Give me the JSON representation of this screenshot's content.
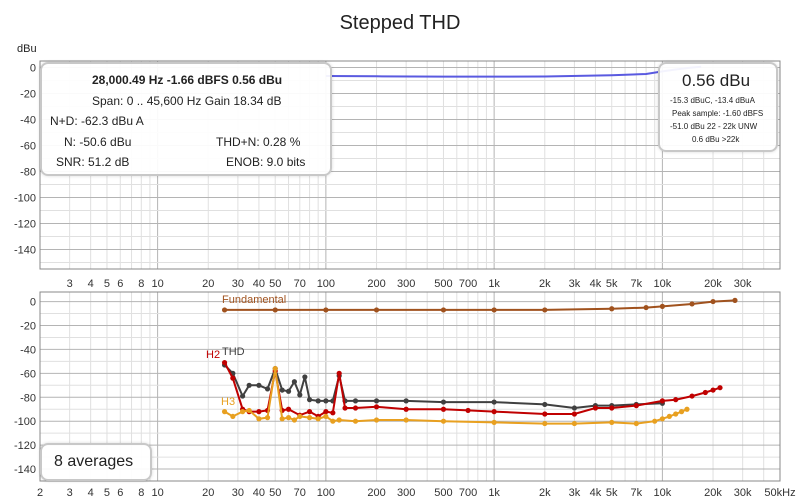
{
  "title": "Stepped THD",
  "info_panel": {
    "line1": "28,000.49 Hz  -1.66 dBFS  0.56 dBu",
    "line2": "Span: 0 .. 45,600 Hz   Gain 18.34 dB",
    "nd": "N+D: -62.3 dBu A",
    "n": "N:  -50.6 dBu",
    "thdn": "THD+N:  0.28 %",
    "snr": "SNR:  51.2 dB",
    "enob": "ENOB:  9.0 bits"
  },
  "reading_panel": {
    "big": "0.56 dBu",
    "l1": "-15.3 dBuC, -13.4 dBuA",
    "l2": "Peak sample: -1.60 dBFS",
    "l3": "-51.0 dBu 22 - 22k UNW",
    "l4": "0.6 dBu >22k"
  },
  "averages_label": "8 averages",
  "colors": {
    "top_trace": "#5a5ae0",
    "fundamental": "#a0521e",
    "thd": "#404040",
    "h2": "#c00000",
    "h3": "#e8a020",
    "grid_major": "#b4b4b4",
    "grid_minor": "#e0e0e0"
  },
  "chart_data": [
    {
      "type": "line",
      "panel": "top",
      "ylabel": "dBu",
      "ylim": [
        -155,
        5
      ],
      "xlim": [
        2,
        50000
      ],
      "xscale": "log",
      "y_ticks": [
        0,
        -20,
        -40,
        -60,
        -80,
        -100,
        -120,
        -140
      ],
      "x_tick_labels": [
        "3",
        "4",
        "5",
        "6",
        "8",
        "10",
        "20",
        "30",
        "40",
        "50",
        "70",
        "100",
        "200",
        "300",
        "500",
        "700",
        "1k",
        "2k",
        "3k",
        "4k",
        "5k",
        "7k",
        "10k",
        "20k",
        "30k"
      ],
      "series": [
        {
          "name": "",
          "x": [
            100,
            200,
            500,
            1000,
            2000,
            5000,
            8000,
            10000,
            12000,
            15000,
            17000
          ],
          "y": [
            -6.5,
            -6.8,
            -7,
            -7,
            -6.9,
            -6,
            -5,
            -3,
            -1.5,
            0,
            0.5
          ]
        }
      ]
    },
    {
      "type": "line",
      "panel": "bottom",
      "ylim": [
        -150,
        8
      ],
      "xlim": [
        2,
        50000
      ],
      "xscale": "log",
      "y_ticks": [
        0,
        -20,
        -40,
        -60,
        -80,
        -100,
        -120,
        -140
      ],
      "x_tick_labels": [
        "2",
        "3",
        "4",
        "5",
        "6",
        "8",
        "10",
        "20",
        "30",
        "40",
        "50",
        "70",
        "100",
        "200",
        "300",
        "500",
        "700",
        "1k",
        "2k",
        "3k",
        "4k",
        "5k",
        "7k",
        "10k",
        "20k",
        "30k",
        "50kHz"
      ],
      "series": [
        {
          "name": "Fundamental",
          "x": [
            25,
            50,
            100,
            200,
            500,
            1000,
            2000,
            5000,
            8000,
            10000,
            15000,
            20000,
            27000
          ],
          "y": [
            -7,
            -7,
            -7,
            -7,
            -7,
            -7,
            -7,
            -6,
            -5,
            -4,
            -2,
            0,
            1
          ]
        },
        {
          "name": "THD",
          "x": [
            25,
            28,
            32,
            35,
            40,
            45,
            50,
            55,
            60,
            65,
            70,
            75,
            80,
            90,
            100,
            110,
            120,
            130,
            150,
            200,
            300,
            500,
            1000,
            2000,
            3000,
            4000,
            5000,
            7000,
            10000
          ],
          "y": [
            -53,
            -60,
            -79,
            -70,
            -70,
            -73,
            -56,
            -74,
            -75,
            -67,
            -78,
            -63,
            -82,
            -83,
            -83,
            -83,
            -62,
            -83,
            -83,
            -83,
            -83,
            -84,
            -84,
            -86,
            -89,
            -87,
            -87,
            -86,
            -85
          ]
        },
        {
          "name": "H2",
          "x": [
            25,
            28,
            32,
            35,
            40,
            45,
            50,
            55,
            60,
            70,
            80,
            90,
            100,
            110,
            120,
            130,
            150,
            200,
            300,
            500,
            700,
            1000,
            2000,
            3000,
            4000,
            5000,
            7000,
            10000,
            12000,
            15000,
            18000,
            20000,
            22000
          ],
          "y": [
            -51,
            -64,
            -90,
            -92,
            -92,
            -91,
            -58,
            -91,
            -90,
            -95,
            -92,
            -96,
            -92,
            -93,
            -60,
            -89,
            -89,
            -88,
            -90,
            -90,
            -91,
            -92,
            -94,
            -94,
            -89,
            -89,
            -87,
            -83,
            -82,
            -79,
            -76,
            -74,
            -72
          ]
        },
        {
          "name": "H3",
          "x": [
            25,
            28,
            32,
            35,
            40,
            45,
            50,
            55,
            60,
            65,
            70,
            80,
            90,
            100,
            110,
            120,
            150,
            200,
            300,
            500,
            1000,
            2000,
            3000,
            5000,
            7000,
            9000,
            10000,
            11000,
            12000,
            13000,
            14000
          ],
          "y": [
            -92,
            -96,
            -92,
            -91,
            -98,
            -97,
            -56,
            -98,
            -97,
            -99,
            -96,
            -97,
            -98,
            -96,
            -100,
            -99,
            -100,
            -99,
            -99,
            -100,
            -101,
            -102,
            -102,
            -101,
            -102,
            -100,
            -98,
            -96,
            -94,
            -92,
            -90
          ]
        }
      ]
    }
  ]
}
